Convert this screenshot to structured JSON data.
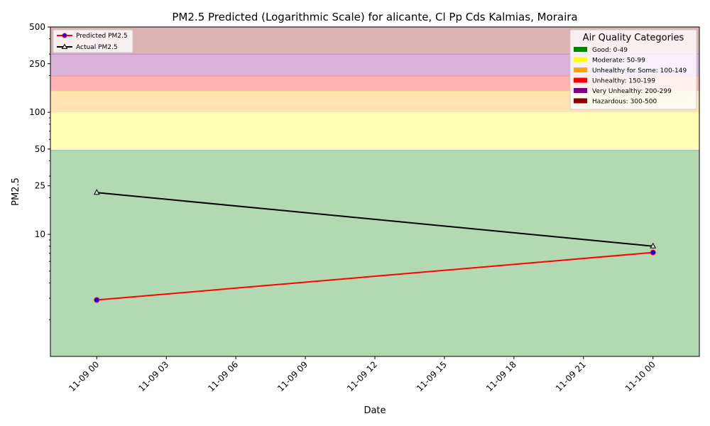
{
  "chart_data": {
    "type": "line",
    "title": "PM2.5 Predicted (Logarithmic Scale) for alicante, Cl Pp Cds Kalmias, Moraira",
    "xlabel": "Date",
    "ylabel": "PM2.5",
    "y_scale": "log",
    "ylim": [
      1,
      500
    ],
    "xlim": [
      "2024-11-08T22:00",
      "2024-11-10T02:00"
    ],
    "x_tick_labels": [
      "11-09 00",
      "11-09 03",
      "11-09 06",
      "11-09 09",
      "11-09 12",
      "11-09 15",
      "11-09 18",
      "11-09 21",
      "11-10 00"
    ],
    "y_tick_labels": [
      "10",
      "25",
      "50",
      "100",
      "250",
      "500"
    ],
    "series": [
      {
        "name": "Predicted PM2.5",
        "color": "#ff0000",
        "marker": "circle",
        "marker_face": "#0000ff",
        "x": [
          "2024-11-09T00:00",
          "2024-11-10T00:00"
        ],
        "values": [
          2.9,
          7.1
        ]
      },
      {
        "name": "Actual PM2.5",
        "color": "#000000",
        "marker": "triangle",
        "x": [
          "2024-11-09T00:00",
          "2024-11-10T00:00"
        ],
        "values": [
          22,
          8
        ]
      }
    ],
    "bands": [
      {
        "label": "Good: 0-49",
        "min": 0,
        "max": 49,
        "color": "#008000"
      },
      {
        "label": "Moderate: 50-99",
        "min": 50,
        "max": 99,
        "color": "#ffff00"
      },
      {
        "label": "Unhealthy for Some: 100-149",
        "min": 100,
        "max": 149,
        "color": "#ffa500"
      },
      {
        "label": "Unhealthy: 150-199",
        "min": 150,
        "max": 199,
        "color": "#ff0000"
      },
      {
        "label": "Very Unhealthy: 200-299",
        "min": 200,
        "max": 299,
        "color": "#800080"
      },
      {
        "label": "Hazardous: 300-500",
        "min": 300,
        "max": 500,
        "color": "#8b0000"
      }
    ],
    "legend_series_placement": "top-left",
    "bands_legend_title": "Air Quality Categories",
    "bands_legend_placement": "top-right"
  }
}
